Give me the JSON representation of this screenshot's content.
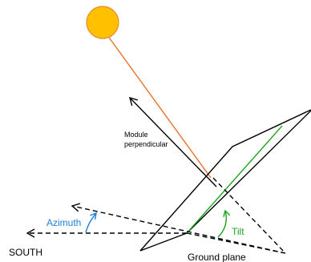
{
  "labels": {
    "module_perpendicular_line1": "Module",
    "module_perpendicular_line2": "perpendicular",
    "azimuth": "Azimuth",
    "tilt": "Tilt",
    "south": "SOUTH",
    "ground_plane": "Ground plane"
  },
  "colors": {
    "sun_fill": "#FFC000",
    "sun_stroke": "#E98A2C",
    "sun_ray": "#E8712A",
    "azimuth": "#1E7FD8",
    "tilt": "#1FA31F",
    "module_line": "#1FA31F",
    "lines": "#000000"
  }
}
